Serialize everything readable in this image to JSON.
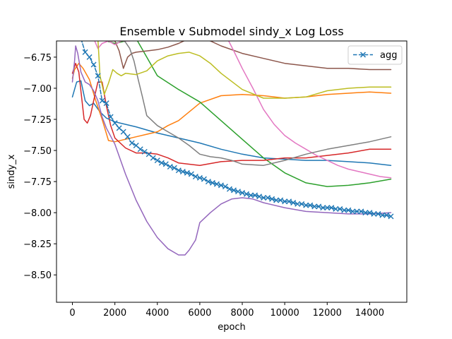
{
  "chart_data": {
    "type": "line",
    "title": "Ensemble v Submodel sindy_x Log Loss",
    "xlabel": "epoch",
    "ylabel": "sindy_x",
    "xlim": [
      -750,
      15750
    ],
    "ylim": [
      -8.72,
      -6.62
    ],
    "x_ticks": [
      0,
      2000,
      4000,
      6000,
      8000,
      10000,
      12000,
      14000
    ],
    "x_tick_labels": [
      "0",
      "2000",
      "4000",
      "6000",
      "8000",
      "10000",
      "12000",
      "14000"
    ],
    "y_ticks": [
      -8.5,
      -8.25,
      -8.0,
      -7.75,
      -7.5,
      -7.25,
      -7.0,
      -6.75
    ],
    "y_tick_labels": [
      "−8.50",
      "−8.25",
      "−8.00",
      "−7.75",
      "−7.50",
      "−7.25",
      "−7.00",
      "−6.75"
    ],
    "grid": false,
    "legend": {
      "placement": "top-right",
      "entries": [
        "agg"
      ]
    },
    "series": [
      {
        "name": "agg",
        "color": "#1f77b4",
        "style": "dashed",
        "marker": "x",
        "x": [
          400,
          600,
          800,
          1000,
          1200,
          1400,
          1600,
          1800,
          2000,
          2200,
          2400,
          2600,
          2800,
          3000,
          3200,
          3400,
          3600,
          3800,
          4000,
          4200,
          4400,
          4600,
          4800,
          5000,
          5200,
          5400,
          5600,
          5800,
          6000,
          6200,
          6400,
          6600,
          6800,
          7000,
          7200,
          7400,
          7600,
          7800,
          8000,
          8200,
          8400,
          8600,
          8800,
          9000,
          9200,
          9400,
          9600,
          9800,
          10000,
          10200,
          10400,
          10600,
          10800,
          11000,
          11200,
          11400,
          11600,
          11800,
          12000,
          12200,
          12400,
          12600,
          12800,
          13000,
          13200,
          13400,
          13600,
          13800,
          14000,
          14200,
          14400,
          14600,
          14800,
          15000
        ],
        "y": [
          -6.6,
          -6.71,
          -6.75,
          -6.81,
          -6.9,
          -7.1,
          -7.12,
          -7.23,
          -7.28,
          -7.32,
          -7.35,
          -7.39,
          -7.44,
          -7.46,
          -7.49,
          -7.51,
          -7.53,
          -7.56,
          -7.58,
          -7.6,
          -7.61,
          -7.63,
          -7.64,
          -7.66,
          -7.67,
          -7.68,
          -7.69,
          -7.71,
          -7.72,
          -7.73,
          -7.75,
          -7.76,
          -7.77,
          -7.78,
          -7.79,
          -7.81,
          -7.82,
          -7.83,
          -7.84,
          -7.85,
          -7.86,
          -7.86,
          -7.87,
          -7.88,
          -7.88,
          -7.89,
          -7.9,
          -7.9,
          -7.91,
          -7.91,
          -7.92,
          -7.93,
          -7.93,
          -7.94,
          -7.94,
          -7.95,
          -7.95,
          -7.96,
          -7.96,
          -7.96,
          -7.97,
          -7.97,
          -7.98,
          -7.98,
          -7.99,
          -7.99,
          -7.99,
          -8.0,
          -8.0,
          -8.01,
          -8.01,
          -8.02,
          -8.02,
          -8.03
        ]
      },
      {
        "name": "",
        "color": "#1f77b4",
        "style": "solid",
        "x": [
          0,
          200,
          400,
          600,
          800,
          1000,
          1300,
          1600,
          2000,
          3000,
          4000,
          5000,
          6000,
          7000,
          8000,
          9000,
          10000,
          11000,
          12000,
          13000,
          14000,
          15000
        ],
        "y": [
          -7.07,
          -6.95,
          -6.94,
          -7.1,
          -7.14,
          -7.12,
          -7.19,
          -7.24,
          -7.27,
          -7.31,
          -7.36,
          -7.4,
          -7.44,
          -7.49,
          -7.53,
          -7.56,
          -7.57,
          -7.58,
          -7.58,
          -7.59,
          -7.6,
          -7.62
        ]
      },
      {
        "name": "",
        "color": "#ff7f0e",
        "style": "solid",
        "x": [
          0,
          100,
          300,
          500,
          800,
          1100,
          1400,
          1700,
          2000,
          2500,
          3000,
          3500,
          4000,
          4500,
          5000,
          6000,
          7000,
          8000,
          9000,
          10000,
          11000,
          12000,
          13000,
          14000,
          15000
        ],
        "y": [
          -6.92,
          -6.85,
          -6.8,
          -6.84,
          -6.93,
          -7.1,
          -7.25,
          -7.42,
          -7.43,
          -7.41,
          -7.39,
          -7.37,
          -7.35,
          -7.3,
          -7.26,
          -7.12,
          -7.06,
          -7.05,
          -7.06,
          -7.08,
          -7.07,
          -7.05,
          -7.04,
          -7.03,
          -7.04
        ]
      },
      {
        "name": "",
        "color": "#2ca02c",
        "style": "solid",
        "x": [
          1300,
          1600,
          2000,
          2500,
          3000,
          3500,
          4000,
          5000,
          6000,
          7000,
          8000,
          9000,
          10000,
          11000,
          12000,
          13000,
          14000,
          15000
        ],
        "y": [
          -6.6,
          -6.62,
          -6.64,
          -6.62,
          -6.6,
          -6.75,
          -6.9,
          -7.01,
          -7.11,
          -7.26,
          -7.41,
          -7.56,
          -7.68,
          -7.76,
          -7.79,
          -7.78,
          -7.76,
          -7.73
        ]
      },
      {
        "name": "",
        "color": "#d62728",
        "style": "solid",
        "x": [
          0,
          150,
          300,
          450,
          550,
          700,
          850,
          1000,
          1200,
          1400,
          1600,
          1800,
          2000,
          2500,
          3000,
          3500,
          4000,
          4500,
          5000,
          6000,
          7000,
          8000,
          9000,
          10000,
          11000,
          12000,
          13000,
          14000,
          15000
        ],
        "y": [
          -6.88,
          -6.8,
          -6.87,
          -7.1,
          -7.25,
          -7.28,
          -7.22,
          -7.1,
          -6.95,
          -6.95,
          -7.14,
          -7.3,
          -7.4,
          -7.48,
          -7.52,
          -7.52,
          -7.53,
          -7.56,
          -7.6,
          -7.62,
          -7.59,
          -7.58,
          -7.58,
          -7.56,
          -7.56,
          -7.54,
          -7.52,
          -7.49,
          -7.49
        ]
      },
      {
        "name": "",
        "color": "#9467bd",
        "style": "solid",
        "x": [
          0,
          100,
          150,
          250,
          400,
          600,
          800,
          1000,
          1200,
          1400,
          1600,
          2000,
          2500,
          3000,
          3500,
          4000,
          4500,
          5000,
          5300,
          5500,
          5800,
          6000,
          6500,
          7000,
          7500,
          8000,
          8500,
          9000,
          10000,
          11000,
          12000,
          13000,
          14000,
          15000
        ],
        "y": [
          -6.95,
          -6.78,
          -6.66,
          -6.72,
          -6.87,
          -6.95,
          -6.97,
          -7.02,
          -7.1,
          -7.23,
          -7.32,
          -7.45,
          -7.69,
          -7.9,
          -8.07,
          -8.2,
          -8.29,
          -8.34,
          -8.34,
          -8.3,
          -8.22,
          -8.08,
          -8.0,
          -7.93,
          -7.89,
          -7.88,
          -7.89,
          -7.92,
          -7.96,
          -7.99,
          -8.0,
          -8.01,
          -8.01,
          -8.0
        ]
      },
      {
        "name": "",
        "color": "#8c564b",
        "style": "solid",
        "x": [
          1600,
          1800,
          2000,
          2200,
          2400,
          2600,
          2800,
          3000,
          3500,
          4000,
          4500,
          5000,
          5500,
          6000,
          6500,
          7000,
          8000,
          9000,
          10000,
          11000,
          12000,
          13000,
          14000,
          15000
        ],
        "y": [
          -6.6,
          -6.62,
          -6.62,
          -6.7,
          -6.84,
          -6.75,
          -6.72,
          -6.71,
          -6.7,
          -6.69,
          -6.67,
          -6.64,
          -6.6,
          -6.6,
          -6.62,
          -6.66,
          -6.72,
          -6.76,
          -6.8,
          -6.82,
          -6.84,
          -6.84,
          -6.85,
          -6.85
        ]
      },
      {
        "name": "",
        "color": "#e377c2",
        "style": "solid",
        "x": [
          1000,
          1200,
          1400,
          1700,
          2000,
          2300,
          2700,
          3000,
          7300,
          7600,
          8000,
          8500,
          9000,
          9500,
          10000,
          10500,
          11000,
          11500,
          12000,
          12500,
          13000,
          13500,
          14000,
          14500,
          15000
        ],
        "y": [
          -6.6,
          -6.68,
          -6.64,
          -6.62,
          -6.65,
          -6.62,
          -6.62,
          -6.6,
          -6.6,
          -6.7,
          -6.84,
          -7.0,
          -7.17,
          -7.29,
          -7.38,
          -7.44,
          -7.49,
          -7.54,
          -7.58,
          -7.62,
          -7.65,
          -7.67,
          -7.69,
          -7.71,
          -7.72
        ]
      },
      {
        "name": "",
        "color": "#7f7f7f",
        "style": "solid",
        "x": [
          2300,
          2500,
          2700,
          2900,
          3100,
          3300,
          3500,
          4000,
          4500,
          5000,
          5500,
          6000,
          6500,
          7000,
          7500,
          8000,
          9000,
          10000,
          11000,
          12000,
          13000,
          14000,
          15000
        ],
        "y": [
          -6.6,
          -6.63,
          -6.68,
          -6.78,
          -6.93,
          -7.07,
          -7.22,
          -7.3,
          -7.35,
          -7.4,
          -7.46,
          -7.53,
          -7.55,
          -7.56,
          -7.58,
          -7.61,
          -7.62,
          -7.58,
          -7.53,
          -7.49,
          -7.46,
          -7.43,
          -7.39
        ]
      },
      {
        "name": "",
        "color": "#bcbd22",
        "style": "solid",
        "x": [
          1200,
          1300,
          1500,
          1700,
          1900,
          2100,
          2300,
          2500,
          3000,
          3500,
          4000,
          4500,
          5000,
          5500,
          6000,
          6500,
          7000,
          8000,
          9000,
          10000,
          11000,
          12000,
          13000,
          14000,
          15000
        ],
        "y": [
          -6.6,
          -6.9,
          -7.05,
          -6.96,
          -6.85,
          -6.88,
          -6.9,
          -6.88,
          -6.89,
          -6.86,
          -6.78,
          -6.74,
          -6.72,
          -6.71,
          -6.74,
          -6.8,
          -6.88,
          -7.01,
          -7.08,
          -7.08,
          -7.07,
          -7.02,
          -7.0,
          -6.99,
          -6.99
        ]
      }
    ]
  }
}
